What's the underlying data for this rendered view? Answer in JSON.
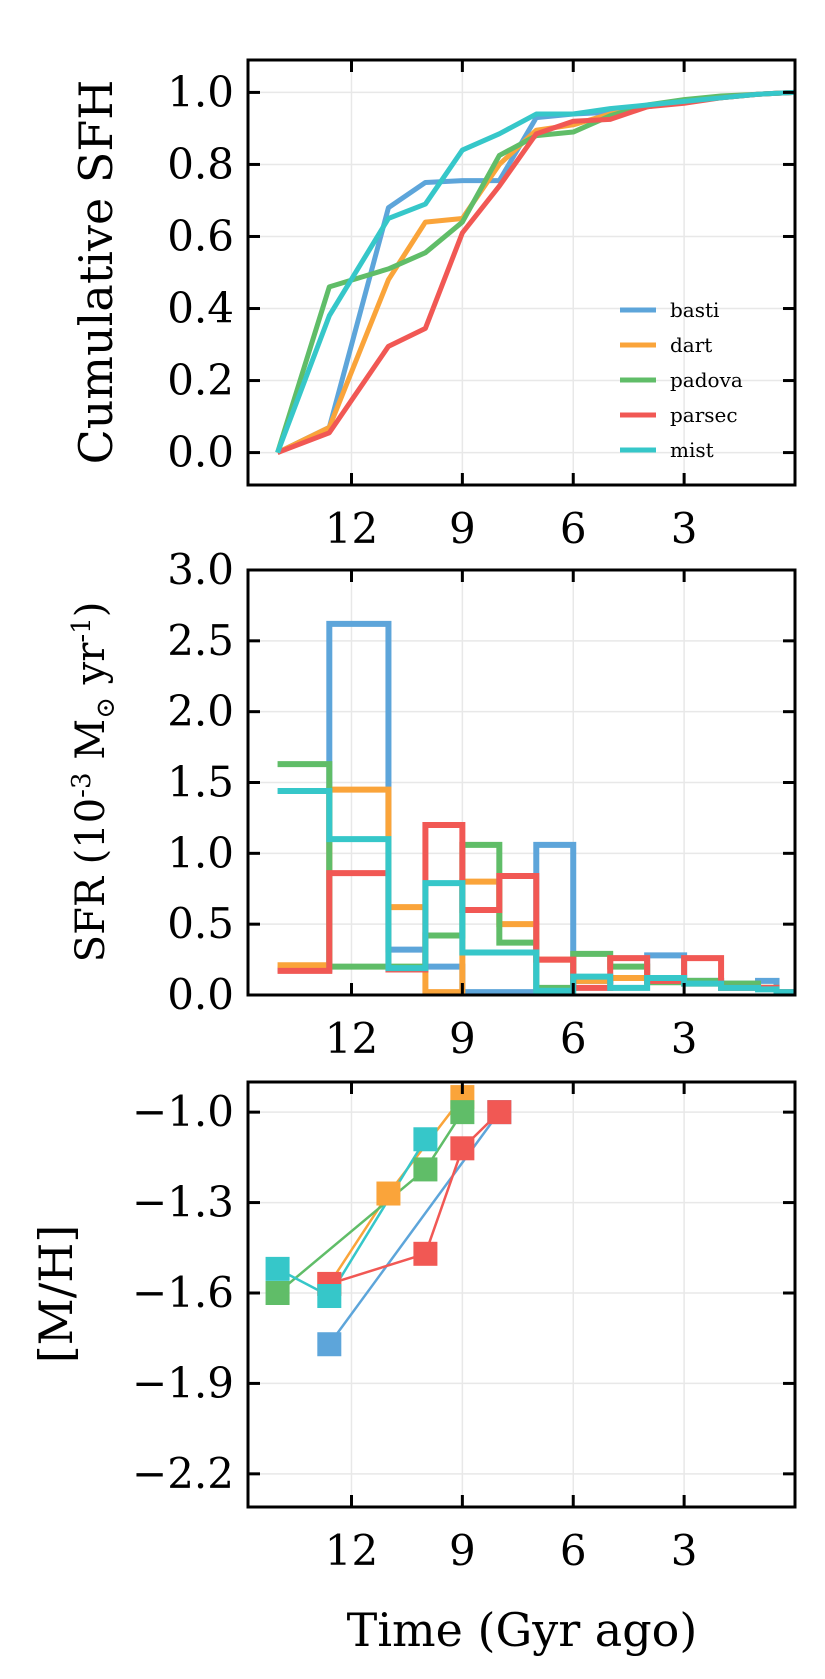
{
  "series_colors": {
    "basti": "#5da5da",
    "dart": "#faa43a",
    "padova": "#60bd68",
    "parsec": "#f15854",
    "mist": "#36c7c9"
  },
  "chart_data": [
    {
      "id": "cumulative",
      "type": "line",
      "title": "",
      "ylabel": "Cumulative SFH",
      "xlabel": "",
      "xlim": [
        14.8,
        0.0
      ],
      "ylim": [
        -0.09,
        1.09
      ],
      "x_ticks": [
        12,
        9,
        6,
        3
      ],
      "y_ticks": [
        0.0,
        0.2,
        0.4,
        0.6,
        0.8,
        1.0
      ],
      "y_tick_labels": [
        "0.0",
        "0.2",
        "0.4",
        "0.6",
        "0.8",
        "1.0"
      ],
      "grid": true,
      "legend_location": "lower-right",
      "series": [
        {
          "name": "basti",
          "x": [
            14.0,
            12.6,
            11.0,
            10.0,
            9.0,
            8.0,
            7.0,
            6.0,
            5.0,
            4.0,
            3.0,
            2.0,
            1.0,
            0.0
          ],
          "y": [
            0.0,
            0.07,
            0.68,
            0.75,
            0.755,
            0.755,
            0.93,
            0.94,
            0.945,
            0.96,
            0.975,
            0.985,
            0.995,
            1.0
          ]
        },
        {
          "name": "dart",
          "x": [
            14.0,
            12.6,
            11.0,
            10.0,
            9.0,
            8.0,
            7.0,
            6.0,
            5.0,
            4.0,
            3.0,
            2.0,
            1.0,
            0.0
          ],
          "y": [
            0.0,
            0.07,
            0.48,
            0.64,
            0.65,
            0.8,
            0.895,
            0.91,
            0.94,
            0.96,
            0.975,
            0.985,
            0.995,
            1.0
          ]
        },
        {
          "name": "padova",
          "x": [
            14.0,
            12.6,
            11.0,
            10.0,
            9.0,
            8.0,
            7.0,
            6.0,
            5.0,
            4.0,
            3.0,
            2.0,
            1.0,
            0.0
          ],
          "y": [
            0.0,
            0.46,
            0.51,
            0.555,
            0.64,
            0.825,
            0.88,
            0.89,
            0.935,
            0.965,
            0.98,
            0.99,
            0.995,
            1.0
          ]
        },
        {
          "name": "parsec",
          "x": [
            14.0,
            12.6,
            11.0,
            10.0,
            9.0,
            8.0,
            7.0,
            6.0,
            5.0,
            4.0,
            3.0,
            2.0,
            1.0,
            0.0
          ],
          "y": [
            0.0,
            0.055,
            0.295,
            0.345,
            0.61,
            0.74,
            0.885,
            0.92,
            0.925,
            0.96,
            0.97,
            0.985,
            0.995,
            1.0
          ]
        },
        {
          "name": "mist",
          "x": [
            14.0,
            12.6,
            11.0,
            10.0,
            9.0,
            8.0,
            7.0,
            6.0,
            5.0,
            4.0,
            3.0,
            2.0,
            1.0,
            0.0
          ],
          "y": [
            0.0,
            0.38,
            0.65,
            0.69,
            0.84,
            0.885,
            0.94,
            0.94,
            0.955,
            0.965,
            0.975,
            0.985,
            0.995,
            1.0
          ]
        }
      ]
    },
    {
      "id": "sfr",
      "type": "step",
      "title": "",
      "ylabel": "SFR (10",
      "ylabel_exp1": "-3",
      "ylabel_mid": " M",
      "ylabel_sun": "⊙",
      "ylabel_mid2": " yr",
      "ylabel_exp2": "-1",
      "ylabel_end": ")",
      "xlabel": "",
      "xlim": [
        14.8,
        0.0
      ],
      "ylim": [
        0.0,
        3.0
      ],
      "x_ticks": [
        12,
        9,
        6,
        3
      ],
      "y_ticks": [
        0.0,
        0.5,
        1.0,
        1.5,
        2.0,
        2.5,
        3.0
      ],
      "y_tick_labels": [
        "0.0",
        "0.5",
        "1.0",
        "1.5",
        "2.0",
        "2.5",
        "3.0"
      ],
      "grid": true,
      "bin_edges": [
        14.0,
        12.6,
        11.0,
        10.0,
        9.0,
        8.0,
        7.0,
        6.0,
        5.0,
        4.0,
        3.0,
        2.0,
        1.0,
        0.5,
        0.0
      ],
      "series": [
        {
          "name": "basti",
          "values": [
            0.18,
            2.62,
            0.32,
            0.2,
            0.02,
            0.02,
            1.06,
            0.1,
            0.12,
            0.28,
            0.1,
            0.08,
            0.1,
            0.02
          ]
        },
        {
          "name": "dart",
          "values": [
            0.21,
            1.45,
            0.62,
            0.02,
            0.8,
            0.5,
            0.25,
            0.1,
            0.12,
            0.1,
            0.08,
            0.06,
            0.05,
            0.02
          ]
        },
        {
          "name": "padova",
          "values": [
            1.63,
            0.2,
            0.2,
            0.42,
            1.06,
            0.37,
            0.05,
            0.29,
            0.2,
            0.09,
            0.1,
            0.08,
            0.05,
            0.02
          ]
        },
        {
          "name": "parsec",
          "values": [
            0.17,
            0.86,
            0.18,
            1.2,
            0.6,
            0.84,
            0.25,
            0.05,
            0.26,
            0.1,
            0.26,
            0.05,
            0.05,
            0.02
          ]
        },
        {
          "name": "mist",
          "values": [
            1.44,
            1.1,
            0.19,
            0.79,
            0.3,
            0.3,
            0.03,
            0.13,
            0.05,
            0.12,
            0.08,
            0.05,
            0.04,
            0.02
          ]
        }
      ]
    },
    {
      "id": "metallicity",
      "type": "line",
      "marker": "square",
      "title": "",
      "ylabel": "[M/H]",
      "xlabel": "Time (Gyr ago)",
      "xlim": [
        14.8,
        0.0
      ],
      "ylim": [
        -2.31,
        -0.9
      ],
      "x_ticks": [
        12,
        9,
        6,
        3
      ],
      "y_ticks": [
        -1.0,
        -1.3,
        -1.6,
        -1.9,
        -2.2
      ],
      "y_tick_labels": [
        "−1.0",
        "−1.3",
        "−1.6",
        "−1.9",
        "−2.2"
      ],
      "grid": true,
      "series": [
        {
          "name": "basti",
          "x": [
            12.6,
            8.0
          ],
          "y": [
            -1.77,
            -1.0
          ]
        },
        {
          "name": "dart",
          "x": [
            12.6,
            11.0,
            9.0
          ],
          "y": [
            -1.57,
            -1.27,
            -0.95
          ]
        },
        {
          "name": "padova",
          "x": [
            14.0,
            10.0,
            9.0
          ],
          "y": [
            -1.6,
            -1.19,
            -1.0
          ]
        },
        {
          "name": "parsec",
          "x": [
            12.6,
            10.0,
            9.0,
            8.0
          ],
          "y": [
            -1.57,
            -1.47,
            -1.12,
            -1.0
          ]
        },
        {
          "name": "mist",
          "x": [
            14.0,
            12.6,
            10.0
          ],
          "y": [
            -1.52,
            -1.61,
            -1.09
          ]
        }
      ]
    }
  ],
  "x_tick_labels": [
    "12",
    "9",
    "6",
    "3"
  ]
}
